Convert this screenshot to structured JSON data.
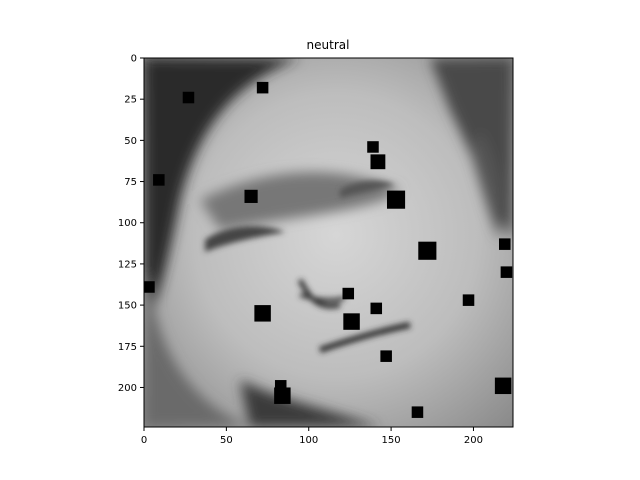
{
  "chart_data": {
    "type": "image",
    "title": "neutral",
    "xlim": [
      0,
      224
    ],
    "ylim": [
      224,
      0
    ],
    "y_inverted": true,
    "x_ticks": [
      0,
      50,
      100,
      150,
      200
    ],
    "y_ticks": [
      0,
      25,
      50,
      75,
      100,
      125,
      150,
      175,
      200
    ],
    "image_description": "grayscale close-up photograph of a face, head tilted, with small black occlusion squares",
    "occlusion_patches": [
      {
        "x": 72,
        "y": 18,
        "size": 7
      },
      {
        "x": 27,
        "y": 24,
        "size": 7
      },
      {
        "x": 139,
        "y": 54,
        "size": 7
      },
      {
        "x": 142,
        "y": 63,
        "size": 9
      },
      {
        "x": 9,
        "y": 74,
        "size": 7
      },
      {
        "x": 65,
        "y": 84,
        "size": 8
      },
      {
        "x": 153,
        "y": 86,
        "size": 11
      },
      {
        "x": 219,
        "y": 113,
        "size": 7
      },
      {
        "x": 172,
        "y": 117,
        "size": 11
      },
      {
        "x": 220,
        "y": 130,
        "size": 7
      },
      {
        "x": 3,
        "y": 139,
        "size": 7
      },
      {
        "x": 124,
        "y": 143,
        "size": 7
      },
      {
        "x": 197,
        "y": 147,
        "size": 7
      },
      {
        "x": 141,
        "y": 152,
        "size": 7
      },
      {
        "x": 72,
        "y": 155,
        "size": 10
      },
      {
        "x": 126,
        "y": 160,
        "size": 10
      },
      {
        "x": 147,
        "y": 181,
        "size": 7
      },
      {
        "x": 83,
        "y": 199,
        "size": 7
      },
      {
        "x": 84,
        "y": 205,
        "size": 10
      },
      {
        "x": 218,
        "y": 199,
        "size": 10
      },
      {
        "x": 166,
        "y": 215,
        "size": 7
      }
    ],
    "colors": {
      "patch": "#000000",
      "frame": "#000000"
    }
  }
}
